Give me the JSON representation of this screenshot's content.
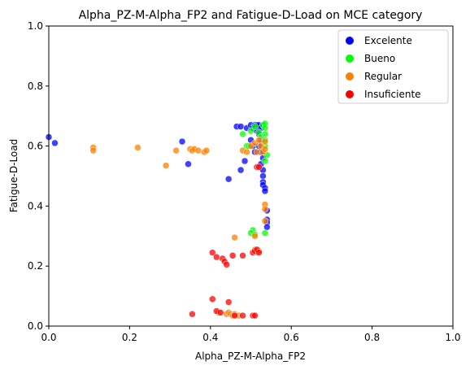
{
  "chart_data": {
    "type": "scatter",
    "title": "Alpha_PZ-M-Alpha_FP2 and Fatigue-D-Load on MCE category",
    "xlabel": "Alpha_PZ-M-Alpha_FP2",
    "ylabel": "Fatigue-D-Load",
    "xlim": [
      0,
      1
    ],
    "ylim": [
      0,
      1
    ],
    "xticks": [
      "0.0",
      "0.2",
      "0.4",
      "0.6",
      "0.8",
      "1.0"
    ],
    "yticks": [
      "0.0",
      "0.2",
      "0.4",
      "0.6",
      "0.8",
      "1.0"
    ],
    "grid": false,
    "legend_position": "top-right",
    "series": [
      {
        "name": "Excelente",
        "color": "#0000ff",
        "points": [
          [
            0.0,
            0.63
          ],
          [
            0.015,
            0.61
          ],
          [
            0.33,
            0.615
          ],
          [
            0.345,
            0.54
          ],
          [
            0.445,
            0.49
          ],
          [
            0.465,
            0.665
          ],
          [
            0.475,
            0.665
          ],
          [
            0.475,
            0.52
          ],
          [
            0.485,
            0.55
          ],
          [
            0.49,
            0.66
          ],
          [
            0.5,
            0.67
          ],
          [
            0.505,
            0.66
          ],
          [
            0.51,
            0.67
          ],
          [
            0.515,
            0.67
          ],
          [
            0.52,
            0.665
          ],
          [
            0.52,
            0.67
          ],
          [
            0.525,
            0.66
          ],
          [
            0.53,
            0.67
          ],
          [
            0.5,
            0.62
          ],
          [
            0.505,
            0.6
          ],
          [
            0.51,
            0.58
          ],
          [
            0.515,
            0.65
          ],
          [
            0.52,
            0.64
          ],
          [
            0.525,
            0.62
          ],
          [
            0.52,
            0.6
          ],
          [
            0.525,
            0.58
          ],
          [
            0.53,
            0.56
          ],
          [
            0.525,
            0.54
          ],
          [
            0.53,
            0.52
          ],
          [
            0.53,
            0.5
          ],
          [
            0.53,
            0.48
          ],
          [
            0.53,
            0.47
          ],
          [
            0.535,
            0.46
          ],
          [
            0.535,
            0.45
          ],
          [
            0.54,
            0.385
          ],
          [
            0.54,
            0.355
          ],
          [
            0.54,
            0.345
          ],
          [
            0.54,
            0.33
          ]
        ]
      },
      {
        "name": "Bueno",
        "color": "#00ff00",
        "points": [
          [
            0.48,
            0.64
          ],
          [
            0.49,
            0.6
          ],
          [
            0.495,
            0.6
          ],
          [
            0.5,
            0.65
          ],
          [
            0.51,
            0.665
          ],
          [
            0.52,
            0.645
          ],
          [
            0.525,
            0.63
          ],
          [
            0.53,
            0.67
          ],
          [
            0.535,
            0.675
          ],
          [
            0.535,
            0.66
          ],
          [
            0.535,
            0.64
          ],
          [
            0.535,
            0.62
          ],
          [
            0.535,
            0.6
          ],
          [
            0.54,
            0.57
          ],
          [
            0.535,
            0.55
          ],
          [
            0.505,
            0.32
          ],
          [
            0.5,
            0.31
          ],
          [
            0.51,
            0.305
          ],
          [
            0.535,
            0.31
          ]
        ]
      },
      {
        "name": "Regular",
        "color": "#ff8000",
        "points": [
          [
            0.11,
            0.595
          ],
          [
            0.11,
            0.585
          ],
          [
            0.22,
            0.595
          ],
          [
            0.29,
            0.535
          ],
          [
            0.315,
            0.585
          ],
          [
            0.35,
            0.59
          ],
          [
            0.355,
            0.585
          ],
          [
            0.36,
            0.59
          ],
          [
            0.37,
            0.585
          ],
          [
            0.385,
            0.58
          ],
          [
            0.39,
            0.585
          ],
          [
            0.48,
            0.585
          ],
          [
            0.49,
            0.58
          ],
          [
            0.5,
            0.6
          ],
          [
            0.51,
            0.61
          ],
          [
            0.515,
            0.58
          ],
          [
            0.52,
            0.62
          ],
          [
            0.525,
            0.6
          ],
          [
            0.53,
            0.58
          ],
          [
            0.535,
            0.59
          ],
          [
            0.535,
            0.615
          ],
          [
            0.535,
            0.405
          ],
          [
            0.535,
            0.39
          ],
          [
            0.535,
            0.35
          ],
          [
            0.46,
            0.295
          ],
          [
            0.51,
            0.3
          ],
          [
            0.51,
            0.255
          ],
          [
            0.515,
            0.245
          ],
          [
            0.52,
            0.25
          ],
          [
            0.42,
            0.045
          ],
          [
            0.44,
            0.04
          ],
          [
            0.445,
            0.045
          ],
          [
            0.45,
            0.04
          ],
          [
            0.455,
            0.035
          ],
          [
            0.46,
            0.04
          ],
          [
            0.47,
            0.035
          ]
        ]
      },
      {
        "name": "Insuficiente",
        "color": "#ff0000",
        "points": [
          [
            0.405,
            0.245
          ],
          [
            0.415,
            0.23
          ],
          [
            0.43,
            0.225
          ],
          [
            0.435,
            0.215
          ],
          [
            0.44,
            0.205
          ],
          [
            0.455,
            0.235
          ],
          [
            0.48,
            0.235
          ],
          [
            0.505,
            0.245
          ],
          [
            0.51,
            0.25
          ],
          [
            0.515,
            0.255
          ],
          [
            0.52,
            0.245
          ],
          [
            0.515,
            0.53
          ],
          [
            0.52,
            0.53
          ],
          [
            0.405,
            0.09
          ],
          [
            0.445,
            0.08
          ],
          [
            0.355,
            0.04
          ],
          [
            0.415,
            0.05
          ],
          [
            0.425,
            0.045
          ],
          [
            0.46,
            0.035
          ],
          [
            0.48,
            0.035
          ],
          [
            0.505,
            0.035
          ],
          [
            0.51,
            0.035
          ]
        ]
      }
    ]
  }
}
